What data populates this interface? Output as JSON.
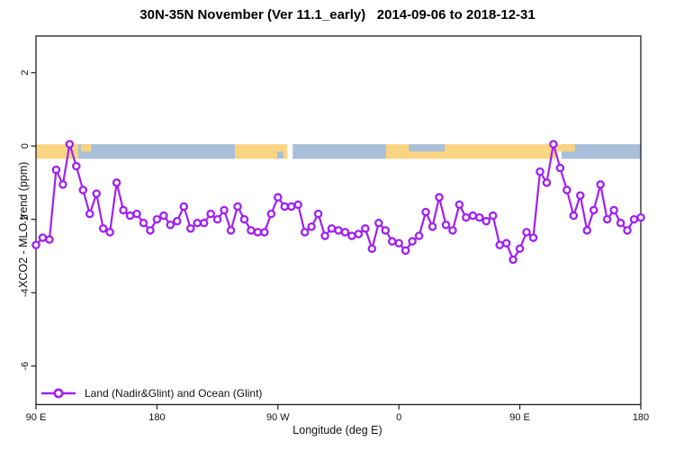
{
  "title": "30N-35N November (Ver 11.1_early)   2014-09-06 to 2018-12-31",
  "legend": {
    "label": "Land (Nadir&Glint) and Ocean (Glint)"
  },
  "colors": {
    "series": "#A020F0",
    "marker_fill": "#ffffff",
    "land": "#F9D483",
    "ocean": "#A9BFD9",
    "axis": "#1f1f1f"
  },
  "chart_data": {
    "type": "line",
    "title": "30N-35N November (Ver 11.1_early)   2014-09-06 to 2018-12-31",
    "xlabel": "Longitude (deg E)",
    "ylabel": "XCO2 - MLO trend (ppm)",
    "xlim": [
      90,
      540
    ],
    "ylim": [
      -7.05,
      3.0
    ],
    "grid": false,
    "legend_position": "bottom-left",
    "x_ticks": [
      {
        "v": 90,
        "label": "90 E"
      },
      {
        "v": 180,
        "label": "180"
      },
      {
        "v": 270,
        "label": "90 W"
      },
      {
        "v": 360,
        "label": "0"
      },
      {
        "v": 450,
        "label": "90 E"
      },
      {
        "v": 540,
        "label": "180"
      }
    ],
    "y_ticks": [
      {
        "v": 2,
        "label": "2"
      },
      {
        "v": 0,
        "label": "0"
      },
      {
        "v": -2,
        "label": "-2"
      },
      {
        "v": -4,
        "label": "-4"
      },
      {
        "v": -6,
        "label": "-6"
      }
    ],
    "series": [
      {
        "name": "Land (Nadir&Glint) and Ocean (Glint)",
        "x": [
          90,
          95,
          100,
          105,
          110,
          115,
          120,
          125,
          130,
          135,
          140,
          145,
          150,
          155,
          160,
          165,
          170,
          175,
          180,
          185,
          190,
          195,
          200,
          205,
          210,
          215,
          220,
          225,
          230,
          235,
          240,
          245,
          250,
          255,
          260,
          265,
          270,
          275,
          280,
          285,
          290,
          295,
          300,
          305,
          310,
          315,
          320,
          325,
          330,
          335,
          340,
          345,
          350,
          355,
          360,
          365,
          370,
          375,
          380,
          385,
          390,
          395,
          400,
          405,
          410,
          415,
          420,
          425,
          430,
          435,
          440,
          445,
          450,
          455,
          460,
          465,
          470,
          475,
          480,
          485,
          490,
          495,
          500,
          505,
          510,
          515,
          520,
          525,
          530,
          535,
          540
        ],
        "y": [
          -2.7,
          -2.5,
          -2.55,
          -0.65,
          -1.05,
          0.05,
          -0.55,
          -1.2,
          -1.85,
          -1.3,
          -2.25,
          -2.35,
          -1.0,
          -1.75,
          -1.9,
          -1.85,
          -2.1,
          -2.3,
          -2.0,
          -1.9,
          -2.15,
          -2.05,
          -1.65,
          -2.25,
          -2.1,
          -2.1,
          -1.85,
          -2.0,
          -1.75,
          -2.3,
          -1.65,
          -2.0,
          -2.3,
          -2.35,
          -2.35,
          -1.85,
          -1.4,
          -1.65,
          -1.65,
          -1.6,
          -2.35,
          -2.2,
          -1.85,
          -2.45,
          -2.25,
          -2.3,
          -2.35,
          -2.45,
          -2.4,
          -2.25,
          -2.8,
          -2.1,
          -2.3,
          -2.6,
          -2.65,
          -2.85,
          -2.6,
          -2.45,
          -1.8,
          -2.2,
          -1.4,
          -2.15,
          -2.3,
          -1.6,
          -1.95,
          -1.9,
          -1.95,
          -2.05,
          -1.9,
          -2.7,
          -2.65,
          -3.1,
          -2.8,
          -2.35,
          -2.5,
          -0.7,
          -1.0,
          0.05,
          -0.6,
          -1.2,
          -1.9,
          -1.35,
          -2.3,
          -1.75,
          -1.05,
          -2.0,
          -1.75,
          -2.1,
          -2.3,
          -2.0,
          -1.95
        ]
      }
    ],
    "map_strip": {
      "value_top": 0.05,
      "value_bottom": -0.35,
      "segments": [
        {
          "type": "land",
          "from": 90,
          "to": 121.5,
          "band": "full"
        },
        {
          "type": "ocean",
          "from": 121.5,
          "to": 238,
          "band": "full"
        },
        {
          "type": "land",
          "from": 123.5,
          "to": 131,
          "band": "top"
        },
        {
          "type": "land",
          "from": 238,
          "to": 277,
          "band": "full"
        },
        {
          "type": "ocean",
          "from": 269.5,
          "to": 274,
          "band": "bottom"
        },
        {
          "type": "ocean",
          "from": 281,
          "to": 350.5,
          "band": "full"
        },
        {
          "type": "land",
          "from": 350.5,
          "to": 476.5,
          "band": "full"
        },
        {
          "type": "ocean",
          "from": 367.5,
          "to": 394,
          "band": "top"
        },
        {
          "type": "ocean",
          "from": 481,
          "to": 540,
          "band": "full"
        },
        {
          "type": "land",
          "from": 476.5,
          "to": 491,
          "band": "top"
        }
      ]
    }
  }
}
